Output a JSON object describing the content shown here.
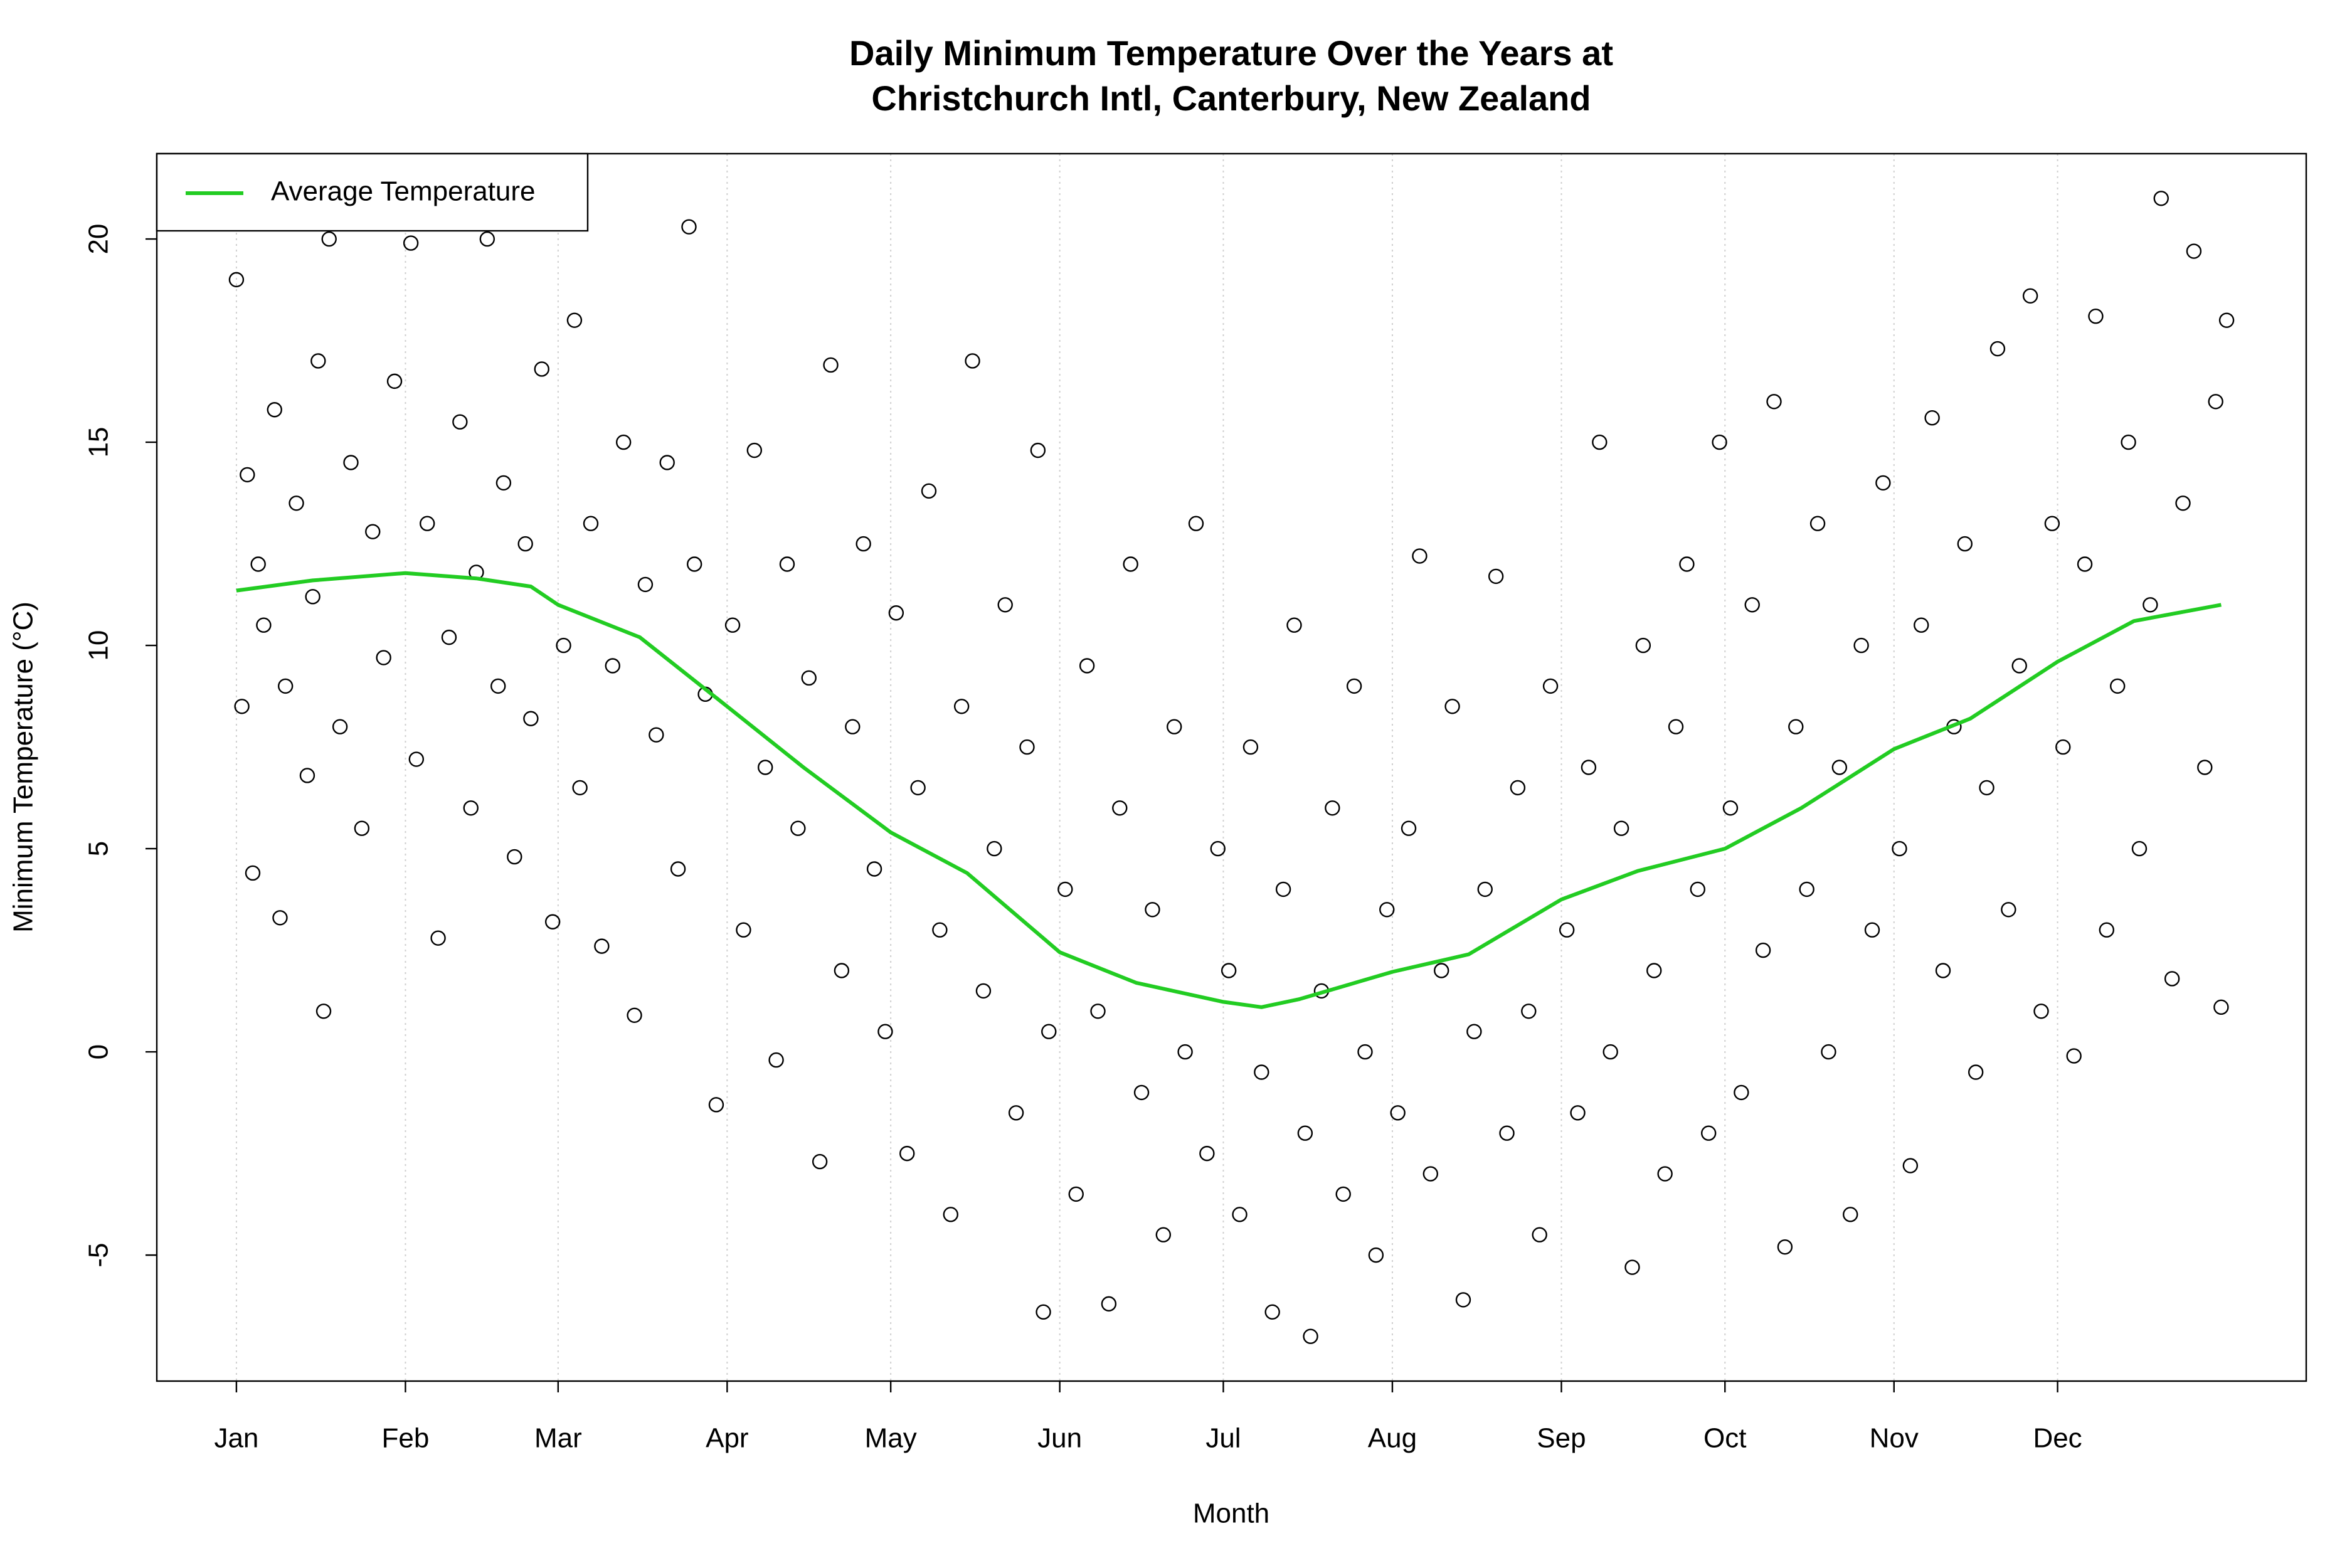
{
  "chart_data": {
    "type": "scatter",
    "title": [
      "Daily Minimum Temperature Over the Years at",
      "Christchurch Intl, Canterbury, New Zealand"
    ],
    "x_label": "Month",
    "y_label": "Minimum Temperature (°C)",
    "xlim": [
      -13.6,
      380.6
    ],
    "ylim": [
      -8.1,
      22.1
    ],
    "xticks": [
      {
        "value": 1,
        "label": "Jan"
      },
      {
        "value": 32,
        "label": "Feb"
      },
      {
        "value": 60,
        "label": "Mar"
      },
      {
        "value": 91,
        "label": "Apr"
      },
      {
        "value": 121,
        "label": "May"
      },
      {
        "value": 152,
        "label": "Jun"
      },
      {
        "value": 182,
        "label": "Jul"
      },
      {
        "value": 213,
        "label": "Aug"
      },
      {
        "value": 244,
        "label": "Sep"
      },
      {
        "value": 274,
        "label": "Oct"
      },
      {
        "value": 305,
        "label": "Nov"
      },
      {
        "value": 335,
        "label": "Dec"
      }
    ],
    "yticks": [
      -5,
      0,
      5,
      10,
      15,
      20
    ],
    "grid": "x",
    "legend": "top-left",
    "series": [
      {
        "color": "#000000",
        "x": [
          1,
          2,
          3,
          4,
          5,
          6,
          8,
          9,
          10,
          12,
          14,
          15,
          16,
          17,
          18,
          20,
          22,
          24,
          26,
          28,
          30,
          33,
          34,
          36,
          38,
          40,
          42,
          44,
          45,
          47,
          49,
          50,
          52,
          54,
          55,
          57,
          59,
          61,
          63,
          64,
          66,
          68,
          70,
          72,
          74,
          76,
          78,
          80,
          82,
          84,
          85,
          87,
          89,
          92,
          94,
          96,
          98,
          100,
          102,
          104,
          106,
          108,
          110,
          112,
          114,
          116,
          118,
          120,
          122,
          124,
          126,
          128,
          130,
          132,
          134,
          136,
          138,
          140,
          142,
          144,
          146,
          148,
          149,
          150,
          153,
          155,
          157,
          159,
          161,
          163,
          165,
          167,
          169,
          171,
          173,
          175,
          177,
          179,
          181,
          183,
          185,
          187,
          189,
          191,
          193,
          195,
          197,
          198,
          200,
          202,
          204,
          206,
          208,
          210,
          212,
          214,
          216,
          218,
          220,
          222,
          224,
          226,
          228,
          230,
          232,
          234,
          236,
          238,
          240,
          242,
          245,
          247,
          249,
          251,
          253,
          255,
          257,
          259,
          261,
          263,
          265,
          267,
          269,
          271,
          273,
          275,
          277,
          279,
          281,
          283,
          285,
          287,
          289,
          291,
          293,
          295,
          297,
          299,
          301,
          303,
          306,
          308,
          310,
          312,
          314,
          316,
          318,
          320,
          322,
          324,
          326,
          328,
          330,
          332,
          334,
          336,
          338,
          340,
          342,
          344,
          346,
          348,
          350,
          352,
          354,
          356,
          358,
          360,
          362,
          364,
          365,
          366
        ],
        "values": [
          19.0,
          8.5,
          14.2,
          4.4,
          12.0,
          10.5,
          15.8,
          3.3,
          9.0,
          13.5,
          6.8,
          11.2,
          17.0,
          1.0,
          20.0,
          8.0,
          14.5,
          5.5,
          12.8,
          9.7,
          16.5,
          19.9,
          7.2,
          13.0,
          2.8,
          10.2,
          15.5,
          6.0,
          11.8,
          20.0,
          9.0,
          14.0,
          4.8,
          12.5,
          8.2,
          16.8,
          3.2,
          10.0,
          18.0,
          6.5,
          13.0,
          2.6,
          9.5,
          15.0,
          0.9,
          11.5,
          7.8,
          14.5,
          4.5,
          20.3,
          12.0,
          8.8,
          -1.3,
          10.5,
          3.0,
          14.8,
          7.0,
          -0.2,
          12.0,
          5.5,
          9.2,
          -2.7,
          16.9,
          2.0,
          8.0,
          12.5,
          4.5,
          0.5,
          10.8,
          -2.5,
          6.5,
          13.8,
          3.0,
          -4.0,
          8.5,
          17.0,
          1.5,
          5.0,
          11.0,
          -1.5,
          7.5,
          14.8,
          -6.4,
          0.5,
          4.0,
          -3.5,
          9.5,
          1.0,
          -6.2,
          6.0,
          12.0,
          -1.0,
          3.5,
          -4.5,
          8.0,
          0.0,
          13.0,
          -2.5,
          5.0,
          2.0,
          -4.0,
          7.5,
          -0.5,
          -6.4,
          4.0,
          10.5,
          -2.0,
          -7.0,
          1.5,
          6.0,
          -3.5,
          9.0,
          0.0,
          -5.0,
          3.5,
          -1.5,
          5.5,
          12.2,
          -3.0,
          2.0,
          8.5,
          -6.1,
          0.5,
          4.0,
          11.7,
          -2.0,
          6.5,
          1.0,
          -4.5,
          9.0,
          3.0,
          -1.5,
          7.0,
          15.0,
          0.0,
          5.5,
          -5.3,
          10.0,
          2.0,
          -3.0,
          8.0,
          12.0,
          4.0,
          -2.0,
          15.0,
          6.0,
          -1.0,
          11.0,
          2.5,
          16.0,
          -4.8,
          8.0,
          4.0,
          13.0,
          0.0,
          7.0,
          -4.0,
          10.0,
          3.0,
          14.0,
          5.0,
          -2.8,
          10.5,
          15.6,
          2.0,
          8.0,
          12.5,
          -0.5,
          6.5,
          17.3,
          3.5,
          9.5,
          18.6,
          1.0,
          13.0,
          7.5,
          -0.1,
          12.0,
          18.1,
          3.0,
          9.0,
          15.0,
          5.0,
          11.0,
          21.0,
          1.8,
          13.5,
          19.7,
          7.0,
          16.0,
          1.1,
          18.0
        ]
      },
      {
        "type": "line",
        "name": "Average Temperature",
        "color": "#22cc22",
        "x": [
          1,
          15,
          32,
          45,
          55,
          60,
          75,
          91,
          105,
          121,
          135,
          152,
          166,
          182,
          189,
          196,
          213,
          227,
          244,
          258,
          274,
          288,
          305,
          319,
          335,
          349,
          365
        ],
        "values": [
          11.35,
          11.6,
          11.78,
          11.65,
          11.45,
          11.0,
          10.2,
          8.5,
          7.0,
          5.4,
          4.4,
          2.45,
          1.7,
          1.23,
          1.1,
          1.3,
          1.97,
          2.4,
          3.75,
          4.45,
          5.0,
          6.0,
          7.45,
          8.2,
          9.6,
          10.6,
          11.0
        ]
      }
    ]
  }
}
